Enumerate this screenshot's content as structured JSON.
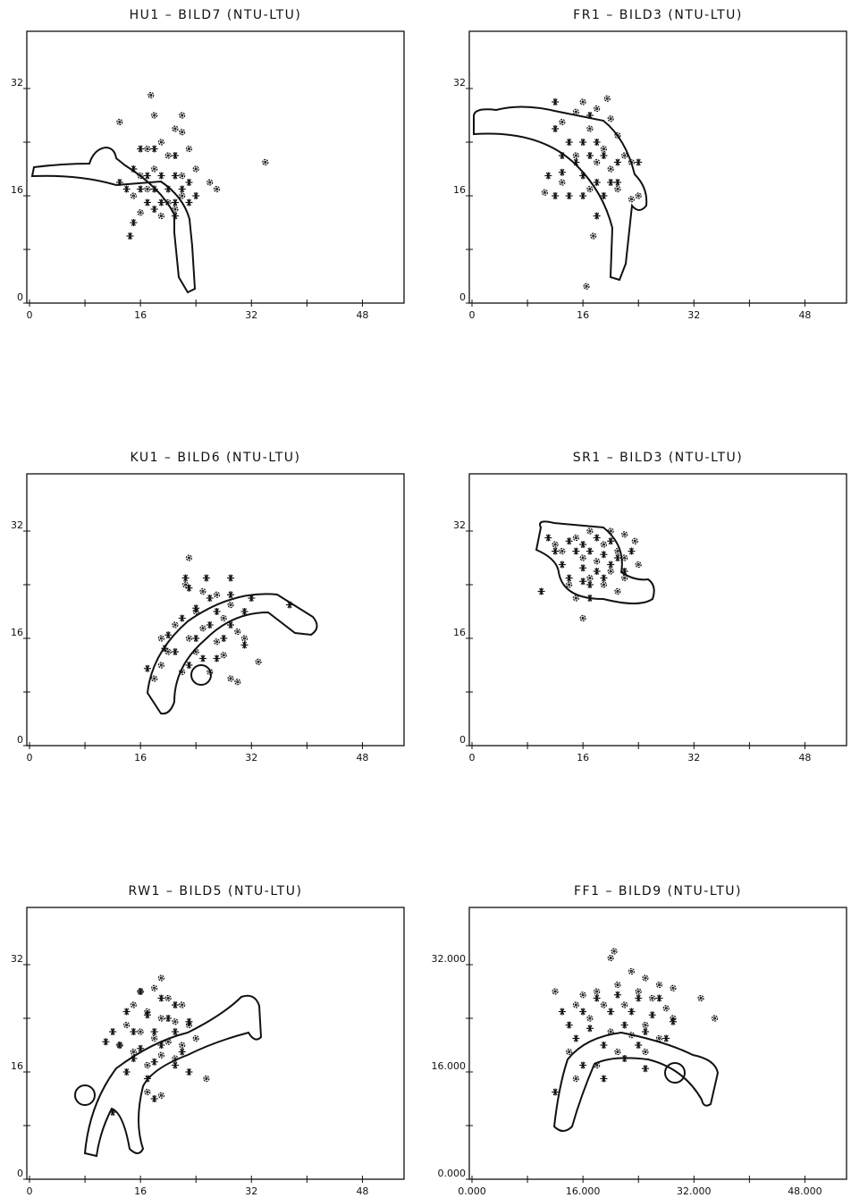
{
  "chart_data": [
    {
      "type": "scatter",
      "title": "HU1 – BILD7 (NTU-LTU)",
      "xlim": [
        0,
        54
      ],
      "ylim": [
        0,
        40
      ],
      "xticks": [
        0,
        16,
        32,
        48
      ],
      "yticks": [
        0,
        16,
        32
      ],
      "xminor": [
        8,
        24,
        40
      ],
      "yminor": [
        8,
        24
      ],
      "series": [
        {
          "marker": "flower",
          "color": "#111",
          "x": [
            17.5,
            13,
            18,
            22,
            21,
            22,
            19,
            17,
            20,
            23,
            24,
            18,
            16,
            22,
            26,
            27,
            34,
            15,
            20,
            17,
            22,
            19,
            16,
            21
          ],
          "values": [
            31,
            27,
            28,
            28,
            26,
            25.5,
            24,
            23,
            22,
            23,
            20,
            20,
            19,
            19,
            18,
            17,
            21,
            16,
            15,
            17,
            16,
            13,
            13.5,
            14
          ]
        },
        {
          "marker": "asterisk",
          "color": "#111",
          "x": [
            16,
            18,
            21,
            15,
            17,
            19,
            21,
            23,
            14,
            16,
            18,
            20,
            22,
            24,
            17,
            19,
            21,
            23,
            13,
            15,
            14.5,
            18,
            21
          ],
          "values": [
            23,
            23,
            22,
            20,
            19,
            19,
            19,
            18,
            17,
            17,
            17,
            17,
            17,
            16,
            15,
            15,
            15,
            15,
            18,
            12,
            10,
            14,
            13
          ]
        }
      ]
    },
    {
      "type": "scatter",
      "title": "FR1 – BILD3 (NTU-LTU)",
      "xlim": [
        0,
        54
      ],
      "ylim": [
        0,
        40
      ],
      "xticks": [
        0,
        16,
        32,
        48
      ],
      "yticks": [
        0,
        16,
        32
      ],
      "xminor": [
        8,
        24,
        40
      ],
      "yminor": [
        8,
        24
      ],
      "series": [
        {
          "marker": "flower",
          "color": "#111",
          "x": [
            16,
            19.5,
            15,
            18,
            20,
            13,
            17,
            21,
            22,
            23,
            15,
            18,
            20,
            10.5,
            13,
            17,
            21,
            23,
            16.5,
            17.5,
            24,
            19
          ],
          "values": [
            30,
            30.5,
            28.5,
            29,
            27.5,
            27,
            26,
            25,
            22,
            21,
            22,
            21,
            20,
            16.5,
            18,
            17,
            17,
            15.5,
            2.5,
            10,
            16,
            23
          ]
        },
        {
          "marker": "asterisk",
          "color": "#111",
          "x": [
            12,
            17,
            12,
            14,
            16,
            18,
            13,
            15,
            17,
            19,
            21,
            24,
            11,
            13,
            16,
            18,
            20,
            12,
            14,
            16,
            19,
            21,
            18
          ],
          "values": [
            30,
            28,
            26,
            24,
            24,
            24,
            22,
            21,
            22,
            22,
            21,
            21,
            19,
            19.5,
            19,
            18,
            18,
            16,
            16,
            16,
            16,
            18,
            13
          ]
        }
      ]
    },
    {
      "type": "scatter",
      "title": "KU1 – BILD6 (NTU-LTU)",
      "xlim": [
        0,
        54
      ],
      "ylim": [
        0,
        40
      ],
      "xticks": [
        0,
        16,
        32,
        48
      ],
      "yticks": [
        0,
        16,
        32
      ],
      "xminor": [
        8,
        24,
        40
      ],
      "yminor": [
        8,
        24
      ],
      "series": [
        {
          "marker": "flower",
          "color": "#111",
          "x": [
            23,
            22.5,
            25,
            27,
            29,
            24,
            28,
            21,
            25,
            30,
            19,
            23,
            27,
            31,
            20,
            24,
            28,
            33,
            19,
            22,
            26,
            29,
            30,
            18
          ],
          "values": [
            28,
            24,
            23,
            22.5,
            21,
            20,
            19,
            18,
            17.5,
            17,
            16,
            16,
            15.5,
            16,
            14,
            14,
            13.5,
            12.5,
            12,
            11,
            11,
            10,
            9.5,
            10
          ]
        },
        {
          "marker": "asterisk",
          "color": "#111",
          "x": [
            22.5,
            25.5,
            29,
            23,
            26,
            29,
            32,
            37.5,
            24,
            27,
            31,
            22,
            26,
            29,
            20,
            24,
            28,
            31,
            21,
            25,
            27,
            17,
            23,
            19.5
          ],
          "values": [
            25,
            25,
            25,
            23.5,
            22,
            22.5,
            22,
            21,
            20.5,
            20,
            20,
            19,
            18,
            18,
            16.5,
            16,
            16,
            15,
            14,
            13,
            13,
            11.5,
            12,
            14.5
          ]
        }
      ]
    },
    {
      "type": "scatter",
      "title": "SR1 – BILD3 (NTU-LTU)",
      "xlim": [
        0,
        54
      ],
      "ylim": [
        0,
        40
      ],
      "xticks": [
        0,
        16,
        32,
        48
      ],
      "yticks": [
        0,
        16,
        32
      ],
      "xminor": [
        8,
        24,
        40
      ],
      "yminor": [
        8,
        24
      ],
      "series": [
        {
          "marker": "flower",
          "color": "#111",
          "x": [
            17,
            20,
            22,
            23.5,
            15,
            19,
            21,
            13,
            16,
            18,
            22,
            20,
            17,
            22,
            14,
            19,
            15,
            21,
            16,
            12,
            24
          ],
          "values": [
            32,
            32,
            31.5,
            30.5,
            31,
            30,
            29,
            29,
            28,
            27.5,
            28,
            26,
            25,
            25,
            24,
            24,
            22,
            23,
            19,
            30,
            27
          ]
        },
        {
          "marker": "asterisk",
          "color": "#111",
          "x": [
            11,
            14,
            16,
            18,
            20,
            12,
            15,
            17,
            19,
            21,
            23,
            13,
            16,
            18,
            20,
            14,
            17,
            19,
            22,
            10,
            17,
            16
          ],
          "values": [
            31,
            30.5,
            30,
            31,
            30.5,
            29,
            29,
            29,
            28.5,
            28,
            29,
            27,
            26.5,
            26,
            27,
            25,
            24,
            25,
            26,
            23,
            22,
            24.5
          ]
        }
      ]
    },
    {
      "type": "scatter",
      "title": "RW1 – BILD5 (NTU-LTU)",
      "xlim": [
        0,
        54
      ],
      "ylim": [
        0,
        40
      ],
      "xticks": [
        0,
        16,
        32,
        48
      ],
      "yticks": [
        0,
        16,
        32
      ],
      "xminor": [
        8,
        24,
        40
      ],
      "yminor": [
        8,
        24
      ],
      "series": [
        {
          "marker": "flower",
          "color": "#111",
          "x": [
            19,
            16,
            18,
            20,
            15,
            22,
            17,
            19,
            21,
            14,
            23,
            16,
            18,
            20,
            22,
            15,
            19,
            21,
            17,
            25.5,
            19,
            17,
            13,
            24
          ],
          "values": [
            30,
            28,
            28.5,
            27,
            26,
            26,
            25,
            24,
            23.5,
            23,
            23,
            22,
            21,
            20.5,
            20,
            19,
            18.5,
            18,
            17,
            15,
            12.5,
            13,
            20,
            21
          ]
        },
        {
          "marker": "asterisk",
          "color": "#111",
          "x": [
            16,
            19,
            21,
            14,
            17,
            20,
            23,
            12,
            15,
            18,
            21,
            11,
            13,
            16,
            19,
            22,
            15,
            18,
            21,
            14,
            17,
            23,
            12,
            18
          ],
          "values": [
            28,
            27,
            26,
            25,
            24.5,
            24,
            23.5,
            22,
            22,
            22,
            22,
            20.5,
            20,
            19.5,
            20,
            19,
            18,
            17.5,
            17,
            16,
            15,
            16,
            10,
            12
          ]
        }
      ]
    },
    {
      "type": "scatter",
      "title": "FF1 – BILD9 (NTU-LTU)",
      "xlim": [
        0,
        54
      ],
      "ylim": [
        0,
        40
      ],
      "xticks": [
        {
          "value": 0,
          "label": "0.000"
        },
        {
          "value": 16,
          "label": "16.000"
        },
        {
          "value": 32,
          "label": "32.000"
        },
        {
          "value": 48,
          "label": "48.000"
        }
      ],
      "yticks": [
        {
          "value": 0,
          "label": "0.000"
        },
        {
          "value": 16,
          "label": "16.000"
        },
        {
          "value": 32,
          "label": "32.000"
        }
      ],
      "xminor": [
        8,
        24,
        40
      ],
      "yminor": [
        8,
        24
      ],
      "series": [
        {
          "marker": "flower",
          "color": "#111",
          "x": [
            20.5,
            20,
            12,
            16,
            23,
            25,
            27,
            21,
            18,
            24,
            29,
            26,
            33,
            15,
            19,
            22,
            28,
            35,
            17,
            25,
            29,
            20,
            23,
            27,
            21,
            14,
            15,
            18,
            25
          ],
          "values": [
            34,
            33,
            28,
            27.5,
            31,
            30,
            29,
            29,
            28,
            28,
            28.5,
            27,
            27,
            26,
            26,
            26,
            25.5,
            24,
            24,
            23,
            24,
            22,
            21.5,
            21,
            19,
            19,
            15,
            17,
            19
          ]
        },
        {
          "marker": "asterisk",
          "color": "#111",
          "x": [
            13,
            18,
            21,
            24,
            27,
            16,
            20,
            23,
            26,
            29,
            14,
            17,
            22,
            25,
            28,
            15,
            19,
            24,
            16,
            22,
            25,
            12,
            19
          ],
          "values": [
            25,
            27,
            27.5,
            27,
            27,
            25,
            25,
            25,
            24.5,
            23.5,
            23,
            22.5,
            23,
            22,
            21,
            21,
            20,
            20,
            17,
            18,
            16.5,
            13,
            15
          ]
        }
      ]
    }
  ]
}
